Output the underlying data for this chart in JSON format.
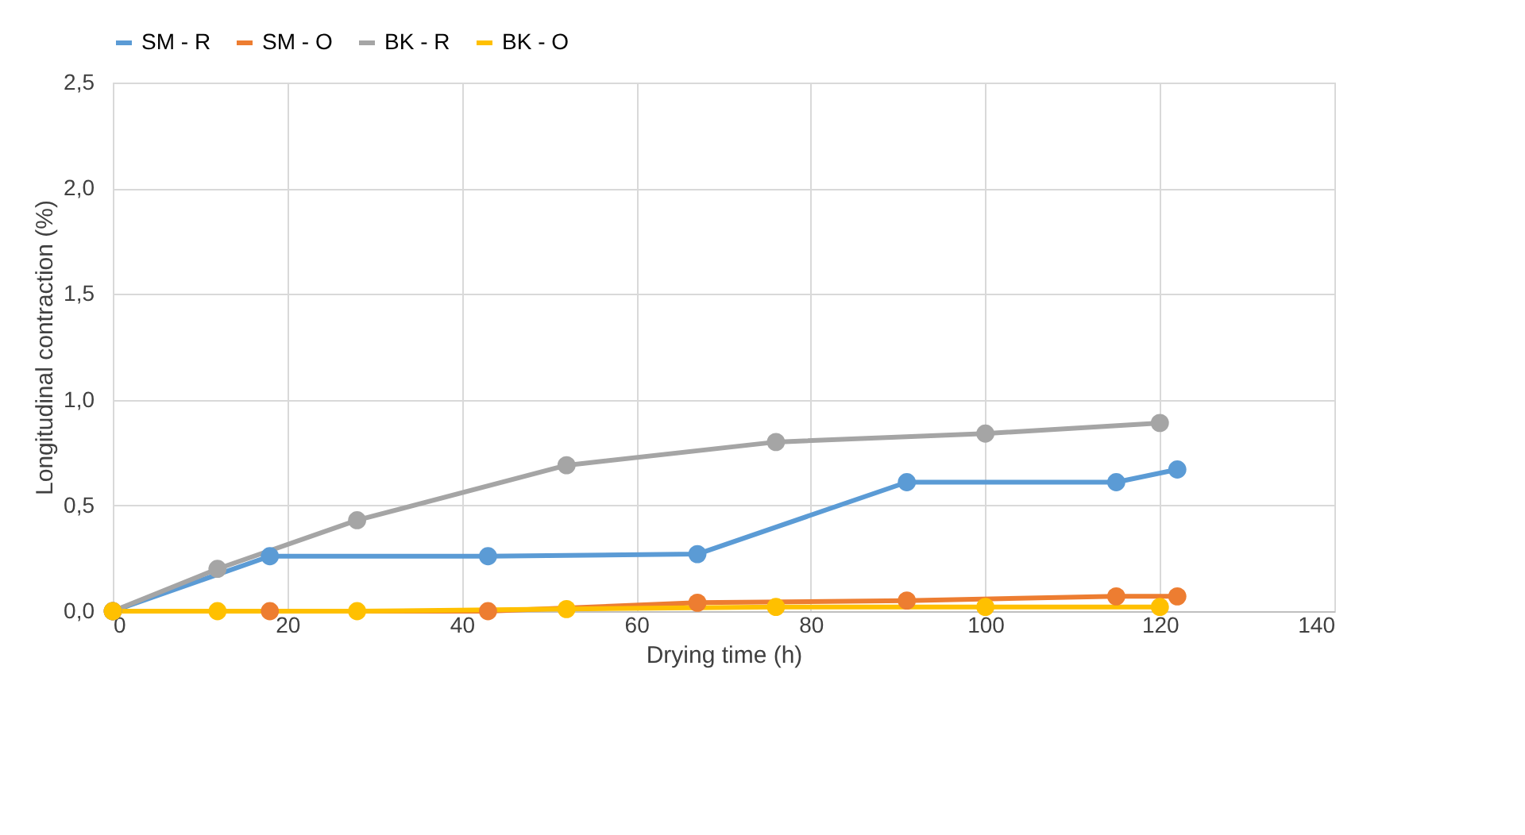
{
  "chart_data": {
    "type": "line",
    "xlabel": "Drying time (h)",
    "ylabel": "Longitudinal contraction (%)",
    "xlim": [
      0,
      140
    ],
    "xticks": [
      0,
      20,
      40,
      60,
      80,
      100,
      120,
      140
    ],
    "ylim": [
      0,
      2.5
    ],
    "yticks": [
      {
        "value": 0,
        "label": "0,0"
      },
      {
        "value": 0.5,
        "label": "0,5"
      },
      {
        "value": 1,
        "label": "1,0"
      },
      {
        "value": 1.5,
        "label": "1,5"
      },
      {
        "value": 2,
        "label": "2,0"
      },
      {
        "value": 2.5,
        "label": "2,5"
      }
    ],
    "grid": true,
    "legend": "top",
    "marker": "circle",
    "line_style": "solid",
    "series": [
      {
        "name": "SM - R",
        "color": "#5b9bd5",
        "x": [
          0,
          18,
          43,
          67,
          91,
          115,
          122
        ],
        "values": [
          0,
          0.26,
          0.26,
          0.27,
          0.61,
          0.61,
          0.67
        ]
      },
      {
        "name": "SM - O",
        "color": "#ed7d31",
        "x": [
          0,
          18,
          43,
          67,
          91,
          115,
          122
        ],
        "values": [
          0,
          0,
          0,
          0.04,
          0.05,
          0.07,
          0.07
        ]
      },
      {
        "name": "BK - R",
        "color": "#a5a5a5",
        "x": [
          0,
          12,
          28,
          52,
          76,
          100,
          120
        ],
        "values": [
          0,
          0.2,
          0.43,
          0.69,
          0.8,
          0.84,
          0.89
        ]
      },
      {
        "name": "BK - O",
        "color": "#ffc000",
        "x": [
          0,
          12,
          28,
          52,
          76,
          100,
          120
        ],
        "values": [
          0,
          0,
          0,
          0.01,
          0.02,
          0.02,
          0.02
        ]
      }
    ]
  }
}
